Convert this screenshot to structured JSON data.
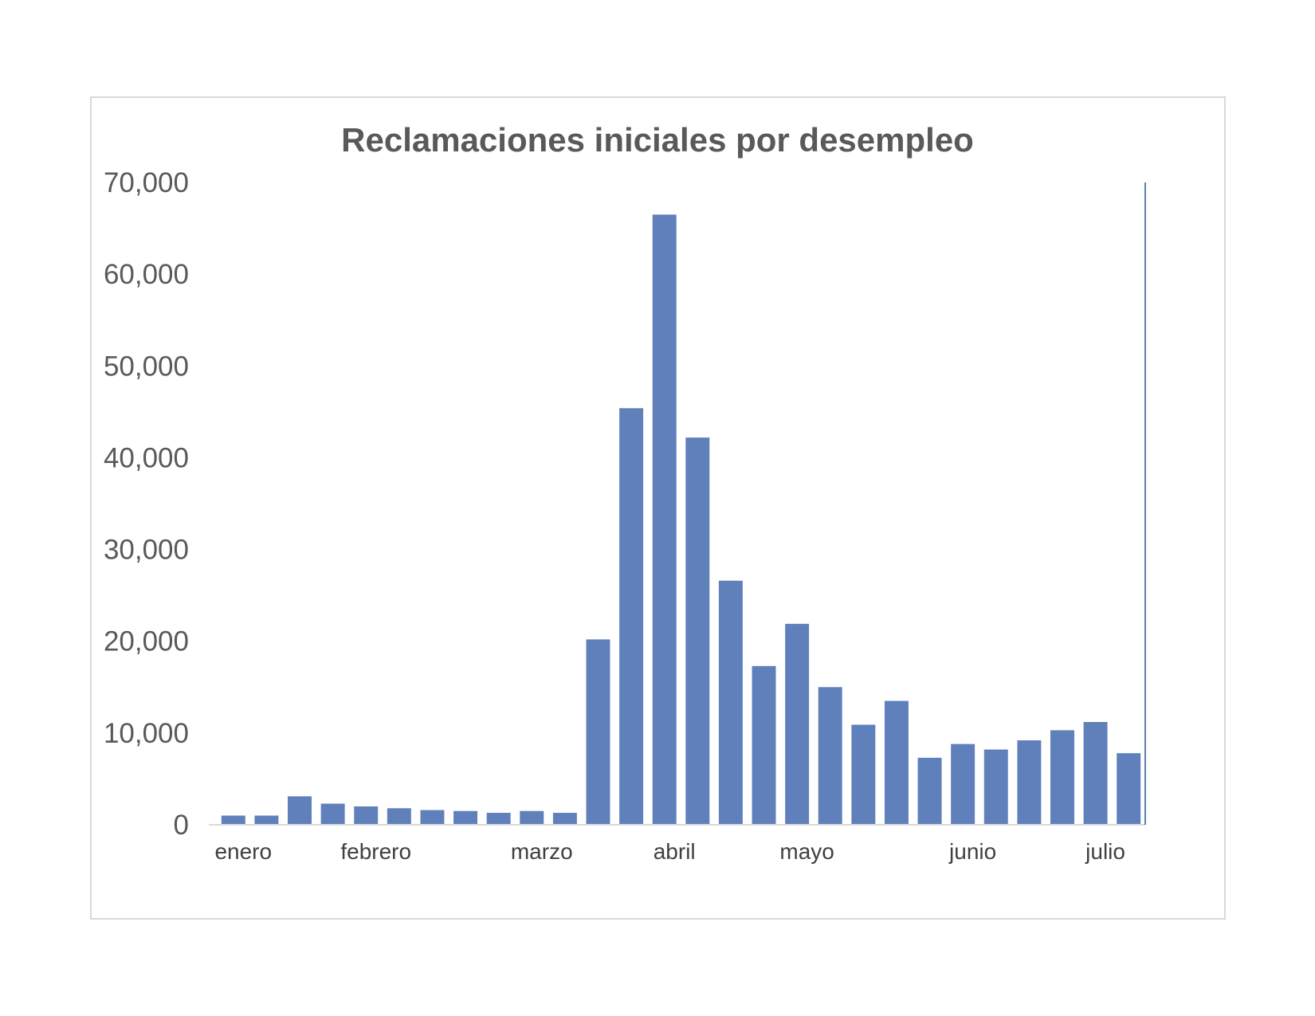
{
  "chart_data": {
    "type": "bar",
    "title": "Reclamaciones iniciales por desempleo",
    "xlabel": "",
    "ylabel": "",
    "ylim": [
      0,
      70000
    ],
    "yticks": [
      0,
      10000,
      20000,
      30000,
      40000,
      50000,
      60000,
      70000
    ],
    "ytick_labels": [
      "0",
      "10,000",
      "20,000",
      "30,000",
      "40,000",
      "50,000",
      "60,000",
      "70,000"
    ],
    "month_labels": [
      {
        "label": "enero",
        "at_bar": 0.3
      },
      {
        "label": "febrero",
        "at_bar": 4.3
      },
      {
        "label": "marzo",
        "at_bar": 9.3
      },
      {
        "label": "abril",
        "at_bar": 13.3
      },
      {
        "label": "mayo",
        "at_bar": 17.3
      },
      {
        "label": "junio",
        "at_bar": 22.3
      },
      {
        "label": "julio",
        "at_bar": 26.3
      }
    ],
    "values": [
      1000,
      1000,
      3100,
      2300,
      2000,
      1800,
      1600,
      1500,
      1300,
      1500,
      1300,
      20200,
      45400,
      66500,
      42200,
      26600,
      17300,
      21900,
      15000,
      10900,
      13500,
      7300,
      8800,
      8200,
      9200,
      10300,
      11200,
      7800
    ],
    "grid": false,
    "legend": "none",
    "bar_color": "#6080bb",
    "axis_color": "#d9d9d9",
    "right_axis_color": "#5c7fb8"
  }
}
